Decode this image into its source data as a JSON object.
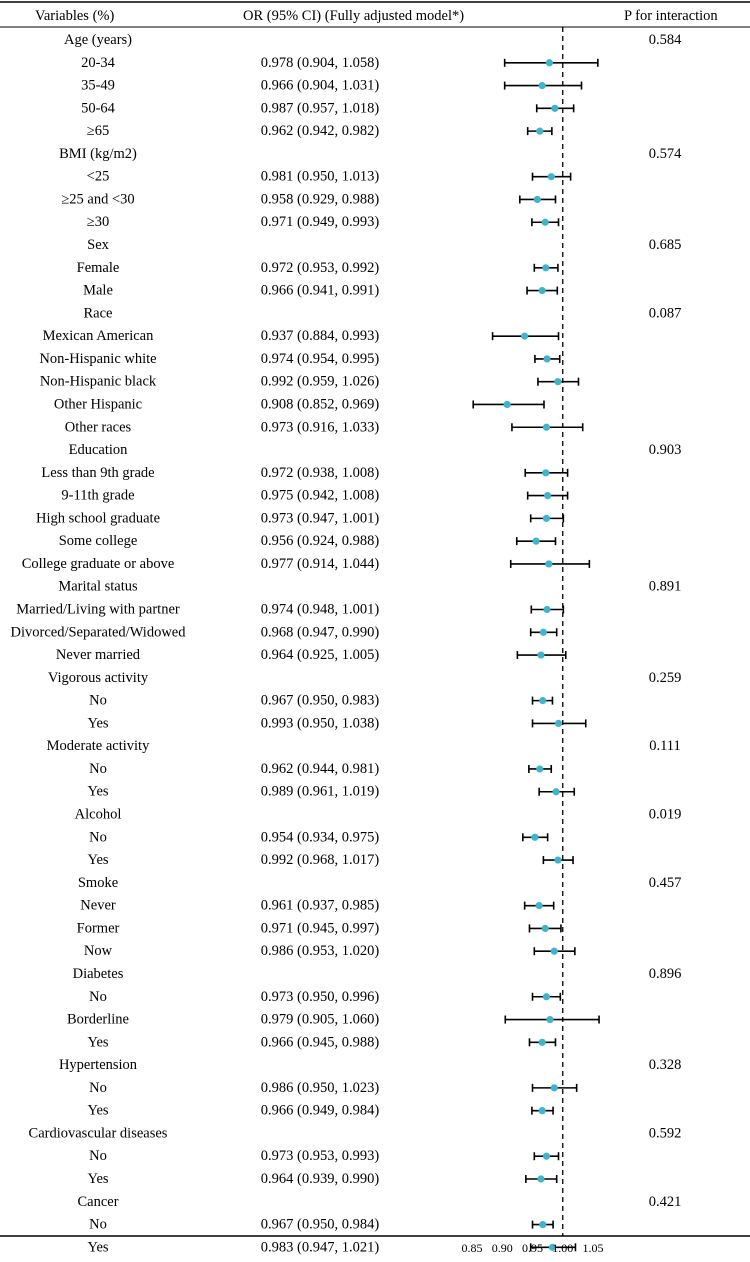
{
  "chart_data": {
    "type": "forest",
    "headers": {
      "variables": "Variables (%)",
      "or": "OR (95% CI) (Fully adjusted model*)",
      "p": "P for interaction"
    },
    "xlim": [
      0.85,
      1.05
    ],
    "reference_line": 1.0,
    "x_ticks": [
      "0.85",
      "0.90",
      "0.95",
      "1.00",
      "1.05"
    ],
    "rows": [
      {
        "label": "Age (years)",
        "group": true,
        "p": "0.584"
      },
      {
        "label": "20-34",
        "or_text": "0.978 (0.904, 1.058)",
        "est": 0.978,
        "lo": 0.904,
        "hi": 1.058
      },
      {
        "label": "35-49",
        "or_text": "0.966 (0.904, 1.031)",
        "est": 0.966,
        "lo": 0.904,
        "hi": 1.031
      },
      {
        "label": "50-64",
        "or_text": "0.987 (0.957, 1.018)",
        "est": 0.987,
        "lo": 0.957,
        "hi": 1.018
      },
      {
        "label": "≥65",
        "or_text": "0.962 (0.942, 0.982)",
        "est": 0.962,
        "lo": 0.942,
        "hi": 0.982
      },
      {
        "label": "BMI (kg/m2)",
        "group": true,
        "p": "0.574"
      },
      {
        "label": "<25",
        "or_text": "0.981 (0.950, 1.013)",
        "est": 0.981,
        "lo": 0.95,
        "hi": 1.013
      },
      {
        "label": "≥25 and <30",
        "or_text": "0.958 (0.929, 0.988)",
        "est": 0.958,
        "lo": 0.929,
        "hi": 0.988
      },
      {
        "label": "≥30",
        "or_text": "0.971 (0.949, 0.993)",
        "est": 0.971,
        "lo": 0.949,
        "hi": 0.993
      },
      {
        "label": "Sex",
        "group": true,
        "p": "0.685"
      },
      {
        "label": "Female",
        "or_text": "0.972 (0.953, 0.992)",
        "est": 0.972,
        "lo": 0.953,
        "hi": 0.992
      },
      {
        "label": "Male",
        "or_text": "0.966 (0.941, 0.991)",
        "est": 0.966,
        "lo": 0.941,
        "hi": 0.991
      },
      {
        "label": "Race",
        "group": true,
        "p": "0.087"
      },
      {
        "label": "Mexican American",
        "or_text": "0.937 (0.884, 0.993)",
        "est": 0.937,
        "lo": 0.884,
        "hi": 0.993
      },
      {
        "label": "Non-Hispanic white",
        "or_text": "0.974 (0.954, 0.995)",
        "est": 0.974,
        "lo": 0.954,
        "hi": 0.995
      },
      {
        "label": "Non-Hispanic black",
        "or_text": "0.992 (0.959, 1.026)",
        "est": 0.992,
        "lo": 0.959,
        "hi": 1.026
      },
      {
        "label": "Other Hispanic",
        "or_text": "0.908 (0.852, 0.969)",
        "est": 0.908,
        "lo": 0.852,
        "hi": 0.969
      },
      {
        "label": "Other races",
        "or_text": "0.973 (0.916, 1.033)",
        "est": 0.973,
        "lo": 0.916,
        "hi": 1.033
      },
      {
        "label": "Education",
        "group": true,
        "p": "0.903"
      },
      {
        "label": "Less than 9th grade",
        "or_text": "0.972 (0.938, 1.008)",
        "est": 0.972,
        "lo": 0.938,
        "hi": 1.008
      },
      {
        "label": "9-11th grade",
        "or_text": "0.975 (0.942, 1.008)",
        "est": 0.975,
        "lo": 0.942,
        "hi": 1.008
      },
      {
        "label": "High school graduate",
        "or_text": "0.973 (0.947, 1.001)",
        "est": 0.973,
        "lo": 0.947,
        "hi": 1.001
      },
      {
        "label": "Some college",
        "or_text": "0.956 (0.924, 0.988)",
        "est": 0.956,
        "lo": 0.924,
        "hi": 0.988
      },
      {
        "label": "College graduate or above",
        "or_text": "0.977 (0.914, 1.044)",
        "est": 0.977,
        "lo": 0.914,
        "hi": 1.044
      },
      {
        "label": "Marital status",
        "group": true,
        "p": "0.891"
      },
      {
        "label": "Married/Living with partner",
        "or_text": "0.974 (0.948, 1.001)",
        "est": 0.974,
        "lo": 0.948,
        "hi": 1.001
      },
      {
        "label": "Divorced/Separated/Widowed",
        "or_text": "0.968 (0.947, 0.990)",
        "est": 0.968,
        "lo": 0.947,
        "hi": 0.99
      },
      {
        "label": "Never married",
        "or_text": "0.964 (0.925, 1.005)",
        "est": 0.964,
        "lo": 0.925,
        "hi": 1.005
      },
      {
        "label": "Vigorous activity",
        "group": true,
        "p": "0.259"
      },
      {
        "label": "No",
        "or_text": "0.967 (0.950, 0.983)",
        "est": 0.967,
        "lo": 0.95,
        "hi": 0.983
      },
      {
        "label": "Yes",
        "or_text": "0.993 (0.950, 1.038)",
        "est": 0.993,
        "lo": 0.95,
        "hi": 1.038
      },
      {
        "label": "Moderate activity",
        "group": true,
        "p": "0.111"
      },
      {
        "label": "No",
        "or_text": "0.962 (0.944, 0.981)",
        "est": 0.962,
        "lo": 0.944,
        "hi": 0.981
      },
      {
        "label": "Yes",
        "or_text": "0.989 (0.961, 1.019)",
        "est": 0.989,
        "lo": 0.961,
        "hi": 1.019
      },
      {
        "label": "Alcohol",
        "group": true,
        "p": "0.019"
      },
      {
        "label": "No",
        "or_text": "0.954 (0.934, 0.975)",
        "est": 0.954,
        "lo": 0.934,
        "hi": 0.975
      },
      {
        "label": "Yes",
        "or_text": "0.992 (0.968, 1.017)",
        "est": 0.992,
        "lo": 0.968,
        "hi": 1.017
      },
      {
        "label": "Smoke",
        "group": true,
        "p": "0.457"
      },
      {
        "label": "Never",
        "or_text": "0.961 (0.937, 0.985)",
        "est": 0.961,
        "lo": 0.937,
        "hi": 0.985
      },
      {
        "label": "Former",
        "or_text": "0.971 (0.945, 0.997)",
        "est": 0.971,
        "lo": 0.945,
        "hi": 0.997
      },
      {
        "label": "Now",
        "or_text": "0.986 (0.953, 1.020)",
        "est": 0.986,
        "lo": 0.953,
        "hi": 1.02
      },
      {
        "label": "Diabetes",
        "group": true,
        "p": "0.896"
      },
      {
        "label": "No",
        "or_text": "0.973 (0.950, 0.996)",
        "est": 0.973,
        "lo": 0.95,
        "hi": 0.996
      },
      {
        "label": "Borderline",
        "or_text": "0.979 (0.905, 1.060)",
        "est": 0.979,
        "lo": 0.905,
        "hi": 1.06
      },
      {
        "label": "Yes",
        "or_text": "0.966 (0.945, 0.988)",
        "est": 0.966,
        "lo": 0.945,
        "hi": 0.988
      },
      {
        "label": "Hypertension",
        "group": true,
        "p": "0.328"
      },
      {
        "label": "No",
        "or_text": "0.986 (0.950, 1.023)",
        "est": 0.986,
        "lo": 0.95,
        "hi": 1.023
      },
      {
        "label": "Yes",
        "or_text": "0.966 (0.949, 0.984)",
        "est": 0.966,
        "lo": 0.949,
        "hi": 0.984
      },
      {
        "label": "Cardiovascular diseases",
        "group": true,
        "p": "0.592"
      },
      {
        "label": "No",
        "or_text": "0.973 (0.953, 0.993)",
        "est": 0.973,
        "lo": 0.953,
        "hi": 0.993
      },
      {
        "label": "Yes",
        "or_text": "0.964 (0.939, 0.990)",
        "est": 0.964,
        "lo": 0.939,
        "hi": 0.99
      },
      {
        "label": "Cancer",
        "group": true,
        "p": "0.421"
      },
      {
        "label": "No",
        "or_text": "0.967 (0.950, 0.984)",
        "est": 0.967,
        "lo": 0.95,
        "hi": 0.984
      },
      {
        "label": "Yes",
        "or_text": "0.983 (0.947, 1.021)",
        "est": 0.983,
        "lo": 0.947,
        "hi": 1.021
      }
    ],
    "colors": {
      "point": "#3fb4cc",
      "ci_line": "#000000",
      "reference_line": "#000000"
    }
  }
}
